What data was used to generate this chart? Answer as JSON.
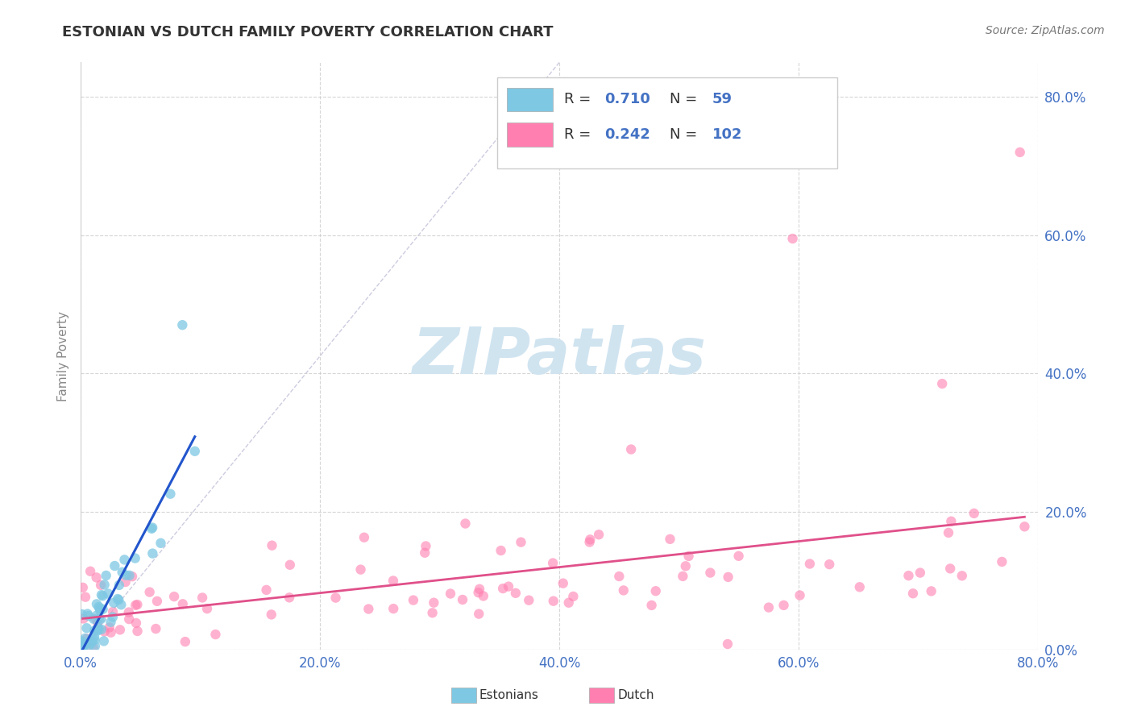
{
  "title": "ESTONIAN VS DUTCH FAMILY POVERTY CORRELATION CHART",
  "source_text": "Source: ZipAtlas.com",
  "ylabel": "Family Poverty",
  "xlim": [
    0.0,
    0.8
  ],
  "ylim": [
    0.0,
    0.85
  ],
  "xticks": [
    0.0,
    0.2,
    0.4,
    0.6,
    0.8
  ],
  "yticks": [
    0.0,
    0.2,
    0.4,
    0.6,
    0.8
  ],
  "xtick_labels": [
    "0.0%",
    "20.0%",
    "40.0%",
    "60.0%",
    "80.0%"
  ],
  "ytick_labels": [
    "0.0%",
    "20.0%",
    "40.0%",
    "60.0%",
    "80.0%"
  ],
  "estonian_color": "#7ec8e3",
  "dutch_color": "#ff80b0",
  "estonian_line_color": "#2255cc",
  "dutch_line_color": "#e0508a",
  "estonian_R": 0.71,
  "estonian_N": 59,
  "dutch_R": 0.242,
  "dutch_N": 102,
  "watermark": "ZIPatlas",
  "watermark_color": "#d0e4f0",
  "legend_R_N_color": "#4472c4",
  "legend_label1": "Estonians",
  "legend_label2": "Dutch",
  "background_color": "#ffffff",
  "grid_color": "#cccccc",
  "title_color": "#333333",
  "source_color": "#777777",
  "tick_color": "#4472c4"
}
